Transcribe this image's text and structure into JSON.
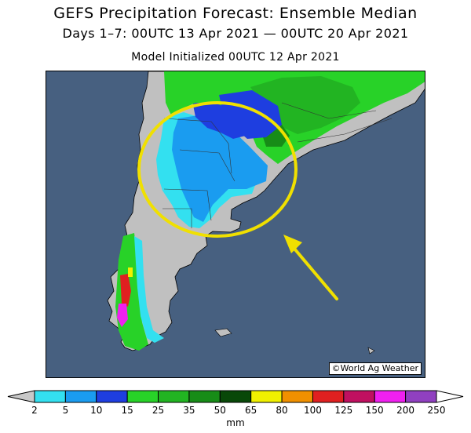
{
  "title": "GEFS Precipitation Forecast: Ensemble Median",
  "subtitle": "Days 1–7: 00UTC 13 Apr 2021 — 00UTC 20 Apr 2021",
  "init_line": "Model Initialized 00UTC 12 Apr 2021",
  "credit": "©World Ag Weather",
  "colorbar": {
    "unit": "mm",
    "levels": [
      "2",
      "5",
      "10",
      "15",
      "25",
      "35",
      "50",
      "65",
      "80",
      "100",
      "125",
      "150",
      "200",
      "250"
    ],
    "colors": [
      "#33e0f0",
      "#1a9cf0",
      "#1e3ee0",
      "#28d228",
      "#22b422",
      "#178c17",
      "#084808",
      "#f0f000",
      "#f09000",
      "#e02020",
      "#c01060",
      "#f020f0",
      "#9040c0"
    ],
    "low_color": "#c8c8c8",
    "high_color": "#ffffff"
  },
  "map": {
    "ocean_color": "#476080",
    "land_dry_color": "#c0c0c0",
    "highlight": {
      "shape": "circle",
      "color": "#f0e000"
    },
    "arrow": {
      "color": "#f0e000"
    }
  }
}
